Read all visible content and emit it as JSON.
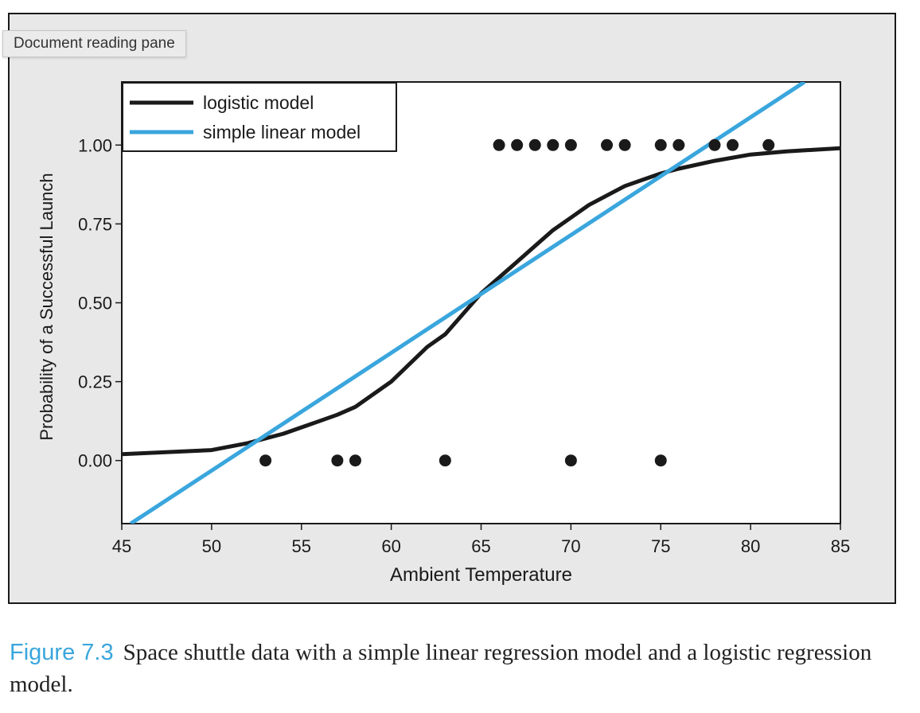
{
  "tooltip": {
    "label": "Document reading pane"
  },
  "caption": {
    "label": "Figure 7.3",
    "text": "Space shuttle data with a simple linear regression model and a logistic regression model."
  },
  "colors": {
    "logistic": "#1a1a1a",
    "linear": "#3aa6dd",
    "points": "#1a1a1a"
  },
  "chart_data": {
    "type": "scatter",
    "xlabel": "Ambient Temperature",
    "ylabel": "Probability of a Successful Launch",
    "xlim": [
      45,
      85
    ],
    "ylim": [
      -0.2,
      1.2
    ],
    "xticks": [
      45,
      50,
      55,
      60,
      65,
      70,
      75,
      80,
      85
    ],
    "xtick_labels": [
      "45",
      "50",
      "55",
      "60",
      "65",
      "70",
      "75",
      "80",
      "85"
    ],
    "yticks": [
      0,
      0.25,
      0.5,
      0.75,
      1.0
    ],
    "ytick_labels": [
      "0.00",
      "0.25",
      "0.50",
      "0.75",
      "1.00"
    ],
    "grid": false,
    "legend_position": "top-left",
    "series": [
      {
        "name": "logistic model",
        "kind": "line",
        "x": [
          45,
          50,
          52,
          54,
          56,
          57,
          58,
          60,
          62,
          63,
          65,
          67,
          68,
          69,
          70,
          71,
          72,
          73,
          74,
          75,
          76,
          78,
          80,
          82,
          85
        ],
        "y": [
          0.02,
          0.033,
          0.055,
          0.085,
          0.125,
          0.145,
          0.17,
          0.25,
          0.36,
          0.4,
          0.53,
          0.63,
          0.68,
          0.73,
          0.77,
          0.81,
          0.84,
          0.87,
          0.89,
          0.91,
          0.925,
          0.95,
          0.97,
          0.98,
          0.99
        ]
      },
      {
        "name": "simple linear model",
        "kind": "line",
        "x": [
          45.5,
          83
        ],
        "y": [
          -0.2,
          1.2
        ]
      },
      {
        "name": "",
        "kind": "points",
        "x": [
          53,
          57,
          58,
          63,
          70,
          75,
          66,
          67,
          68,
          69,
          70,
          72,
          73,
          75,
          76,
          78,
          79,
          81
        ],
        "y": [
          0,
          0,
          0,
          0,
          0,
          0,
          1,
          1,
          1,
          1,
          1,
          1,
          1,
          1,
          1,
          1,
          1,
          1
        ]
      }
    ]
  }
}
